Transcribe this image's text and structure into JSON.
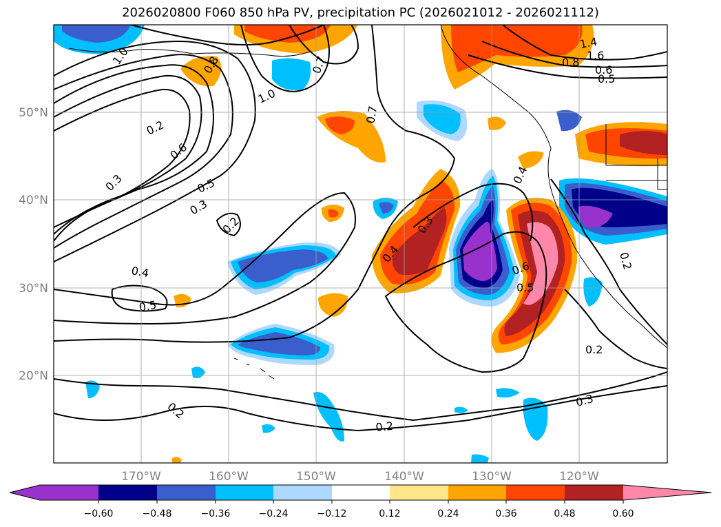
{
  "title": "2026020800 F060 850 hPa PV, precipitation PC (2026021012 - 2026021112)",
  "lat_labels": [
    "50°N",
    "40°N",
    "30°N",
    "20°N"
  ],
  "lon_labels": [
    "170°W",
    "160°W",
    "150°W",
    "140°W",
    "130°W",
    "120°W"
  ],
  "colorbar": {
    "tick_labels": [
      "−0.60",
      "−0.48",
      "−0.36",
      "−0.24",
      "−0.12",
      "0.12",
      "0.24",
      "0.36",
      "0.48",
      "0.60"
    ],
    "colors": [
      "#9932cc",
      "#00008b",
      "#3a5fcd",
      "#00bfff",
      "#add8ff",
      "#ffffff",
      "#ffe68a",
      "#ffa500",
      "#ff4500",
      "#b22222",
      "#ff88aa"
    ]
  },
  "contour_labels": [
    "1.0",
    "0.8",
    "0.7",
    "1.0",
    "0.7",
    "1.4",
    "1.6",
    "0.8",
    "0.6",
    "0.5",
    "0.2",
    "0.6",
    "0.5",
    "0.3",
    "0.3",
    "0.2",
    "0.4",
    "0.5",
    "0.4",
    "0.3",
    "0.4",
    "0.6",
    "0.5",
    "0.2",
    "0.2",
    "0.3",
    "0.2",
    "0.2"
  ]
}
